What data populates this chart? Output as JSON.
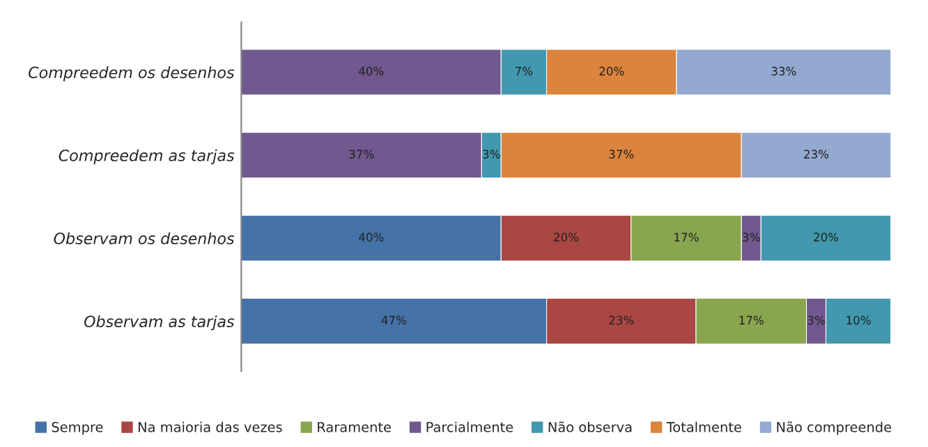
{
  "chart_data": {
    "type": "bar",
    "orientation": "horizontal",
    "stacked": true,
    "legend": "bottom",
    "categories": [
      "Compreedem os desenhos",
      "Compreedem as tarjas",
      "Observam os desenhos",
      "Observam as tarjas"
    ],
    "series": [
      {
        "name": "Sempre",
        "color": "#4572a7",
        "values": [
          null,
          null,
          40,
          47
        ],
        "value_labels": [
          null,
          null,
          "40%",
          "47%"
        ]
      },
      {
        "name": "Na maioria das vezes",
        "color": "#aa4643",
        "values": [
          null,
          null,
          20,
          23
        ],
        "value_labels": [
          null,
          null,
          "20%",
          "23%"
        ]
      },
      {
        "name": "Raramente",
        "color": "#89a54e",
        "values": [
          null,
          null,
          17,
          17
        ],
        "value_labels": [
          null,
          null,
          "17%",
          "17%"
        ]
      },
      {
        "name": "Parcialmente",
        "color": "#71588f",
        "values": [
          40,
          37,
          3,
          3
        ],
        "value_labels": [
          "40%",
          "37%",
          "3%",
          "3%"
        ]
      },
      {
        "name": "Não observa",
        "color": "#4198af",
        "values": [
          7,
          3,
          20,
          10
        ],
        "value_labels": [
          "7%",
          "3%",
          "20%",
          "10%"
        ]
      },
      {
        "name": "Totalmente",
        "color": "#db843d",
        "values": [
          20,
          37,
          null,
          null
        ],
        "value_labels": [
          "20%",
          "37%",
          null,
          null
        ]
      },
      {
        "name": "Não compreende",
        "color": "#93a9cf",
        "values": [
          33,
          23,
          null,
          null
        ],
        "value_labels": [
          "33%",
          "23%",
          null,
          null
        ]
      }
    ]
  }
}
